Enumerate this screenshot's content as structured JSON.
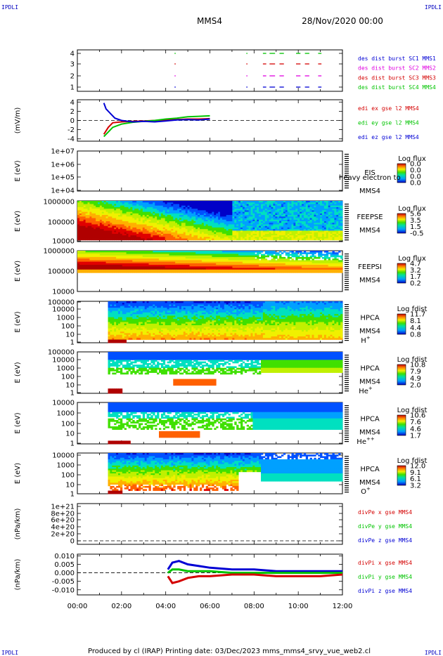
{
  "header": {
    "corner_left": "IPDLI",
    "corner_right": "IPDLI",
    "spacecraft": "MMS4",
    "datetime": "28/Nov/2020 00:00"
  },
  "footer": {
    "text": "Produced by cl (IRAP)   Printing date: 03/Dec/2023   mms_mms4_srvy_vue_web2.cl",
    "corner_left": "IPDLI",
    "corner_right": "IPDLI"
  },
  "time_axis": {
    "ticks": [
      "00:00",
      "02:00",
      "04:00",
      "06:00",
      "08:00",
      "10:00",
      "12:00"
    ]
  },
  "colors": {
    "red": "#d40000",
    "green": "#00c400",
    "blue": "#0000d4",
    "magenta": "#e000e0"
  },
  "chart_data": [
    {
      "id": "burst",
      "type": "scatter",
      "ylabel": "",
      "yticks": [
        "1",
        "2",
        "3",
        "4"
      ],
      "legend": [
        {
          "text": "des dist burst SC1 MMS1",
          "color": "#0000d4"
        },
        {
          "text": "des dist burst SC2 MMS2",
          "color": "#e000e0"
        },
        {
          "text": "des dist burst SC3 MMS3",
          "color": "#d40000"
        },
        {
          "text": "des dist burst SC4 MMS4",
          "color": "#00c400"
        }
      ],
      "intervals_hours": [
        [
          4.4,
          4.45
        ],
        [
          7.65,
          7.7
        ],
        [
          8.4,
          8.55
        ],
        [
          8.7,
          8.95
        ],
        [
          9.15,
          9.35
        ],
        [
          9.9,
          10.1
        ],
        [
          10.3,
          10.5
        ],
        [
          10.9,
          11.05
        ]
      ]
    },
    {
      "id": "efield",
      "type": "line",
      "ylabel": "(mV/m)",
      "yticks": [
        "-4",
        "-2",
        "0",
        "2",
        "4"
      ],
      "ylim": [
        -4.5,
        4.5
      ],
      "legend": [
        {
          "text": "edi ex gse l2 MMS4",
          "color": "#d40000"
        },
        {
          "text": "edi ey gse l2 MMS4",
          "color": "#00c400"
        },
        {
          "text": "edi ez gse l2 MMS4",
          "color": "#0000d4"
        }
      ],
      "series": [
        {
          "name": "edi ex gse l2 MMS4",
          "x": [
            1.2,
            1.4,
            1.6,
            2.0,
            2.5,
            3.0,
            3.5,
            4.0,
            4.5,
            5.0,
            5.5,
            6.0
          ],
          "y": [
            -3.0,
            -1.5,
            -0.5,
            -0.3,
            -0.2,
            -0.1,
            0.0,
            0.1,
            0.2,
            0.3,
            0.3,
            0.4
          ]
        },
        {
          "name": "edi ey gse l2 MMS4",
          "x": [
            1.2,
            1.4,
            1.6,
            2.0,
            2.5,
            3.0,
            3.5,
            4.0,
            4.5,
            5.0,
            5.5,
            6.0
          ],
          "y": [
            -3.5,
            -2.5,
            -1.5,
            -0.8,
            -0.4,
            -0.2,
            0.0,
            0.3,
            0.5,
            0.8,
            0.9,
            1.0
          ]
        },
        {
          "name": "edi ez gse l2 MMS4",
          "x": [
            1.2,
            1.3,
            1.5,
            1.7,
            2.0,
            2.5,
            3.0,
            3.5,
            4.0,
            4.5,
            5.0,
            5.5,
            6.0
          ],
          "y": [
            3.8,
            2.5,
            1.5,
            0.5,
            0.0,
            -0.3,
            -0.2,
            -0.3,
            -0.1,
            0.1,
            0.2,
            0.1,
            0.3
          ]
        }
      ]
    },
    {
      "id": "eis",
      "type": "heatmap",
      "ylabel": "E (eV)",
      "yticks": [
        "1e+04",
        "1e+05",
        "1e+06",
        "1e+07"
      ],
      "label_lines": [
        "EIS",
        "MMS4"
      ],
      "overlay_text": "heavy electron to",
      "colorbar_title": "Log flux",
      "colorbar_ticks": [
        "0.0",
        "0.0",
        "0.0",
        "0.0"
      ]
    },
    {
      "id": "feepse",
      "type": "heatmap",
      "ylabel": "E (eV)",
      "yticks": [
        "10000",
        "100000",
        "1000000"
      ],
      "label_lines": [
        "FEEPSE",
        "MMS4"
      ],
      "colorbar_title": "Log flux",
      "colorbar_ticks": [
        "5.6",
        "3.5",
        "1.5",
        "-0.5"
      ]
    },
    {
      "id": "feepsi",
      "type": "heatmap",
      "ylabel": "E (eV)",
      "yticks": [
        "10000",
        "100000",
        "1000000"
      ],
      "label_lines": [
        "FEEPSI",
        "MMS4"
      ],
      "colorbar_title": "Log flux",
      "colorbar_ticks": [
        "4.7",
        "3.2",
        "1.7",
        "0.2"
      ]
    },
    {
      "id": "hpca_h",
      "type": "heatmap",
      "ylabel": "E (eV)",
      "yticks": [
        "1",
        "10",
        "100",
        "1000",
        "10000",
        "100000"
      ],
      "label_lines": [
        "HPCA",
        "MMS4"
      ],
      "species": "H",
      "species_charge": "+",
      "colorbar_title": "Log fdist",
      "colorbar_ticks": [
        "11.7",
        "8.1",
        "4.4",
        "0.8"
      ]
    },
    {
      "id": "hpca_he1",
      "type": "heatmap",
      "ylabel": "E (eV)",
      "yticks": [
        "1",
        "10",
        "100",
        "1000",
        "10000",
        "100000"
      ],
      "label_lines": [
        "HPCA",
        "MMS4"
      ],
      "species": "He",
      "species_charge": "+",
      "colorbar_title": "Log fdist",
      "colorbar_ticks": [
        "10.8",
        "7.9",
        "4.9",
        "2.0"
      ]
    },
    {
      "id": "hpca_he2",
      "type": "heatmap",
      "ylabel": "E (eV)",
      "yticks": [
        "1",
        "10",
        "100",
        "1000",
        "10000"
      ],
      "label_lines": [
        "HPCA",
        "MMS4"
      ],
      "species": "He",
      "species_charge": "++",
      "colorbar_title": "Log fdist",
      "colorbar_ticks": [
        "10.6",
        "7.6",
        "4.6",
        "1.7"
      ]
    },
    {
      "id": "hpca_o",
      "type": "heatmap",
      "ylabel": "E (eV)",
      "yticks": [
        "1",
        "10",
        "100",
        "1000",
        "10000"
      ],
      "label_lines": [
        "HPCA",
        "MMS4"
      ],
      "species": "O",
      "species_charge": "+",
      "colorbar_title": "Log fdist",
      "colorbar_ticks": [
        "12.0",
        "9.1",
        "6.1",
        "3.2"
      ]
    },
    {
      "id": "divpe",
      "type": "line",
      "ylabel": "(nPa/km)",
      "yticks": [
        "0",
        "2e+20",
        "4e+20",
        "6e+20",
        "8e+20",
        "1e+21"
      ],
      "legend": [
        {
          "text": "divPe x gse MMS4",
          "color": "#d40000"
        },
        {
          "text": "divPe y gse MMS4",
          "color": "#00c400"
        },
        {
          "text": "divPe z gse MMS4",
          "color": "#0000d4"
        }
      ]
    },
    {
      "id": "divpi",
      "type": "line",
      "ylabel": "(nPa/km)",
      "yticks": [
        "-0.010",
        "-0.005",
        "0.000",
        "0.005",
        "0.010"
      ],
      "ylim": [
        -0.013,
        0.011
      ],
      "legend": [
        {
          "text": "divPi x gse MMS4",
          "color": "#d40000"
        },
        {
          "text": "divPi y gse MMS4",
          "color": "#00c400"
        },
        {
          "text": "divPi z gse MMS4",
          "color": "#0000d4"
        }
      ],
      "series": [
        {
          "name": "divPi z gse MMS4",
          "x": [
            4.1,
            4.3,
            4.6,
            5.0,
            5.5,
            6.0,
            7.0,
            8.0,
            9.0,
            10.0,
            11.0,
            12.0
          ],
          "y": [
            0.002,
            0.006,
            0.007,
            0.005,
            0.004,
            0.003,
            0.002,
            0.002,
            0.001,
            0.001,
            0.001,
            0.001
          ]
        },
        {
          "name": "divPi y gse MMS4",
          "x": [
            4.1,
            4.3,
            4.6,
            5.0,
            5.5,
            6.0,
            7.0,
            8.0,
            9.0,
            10.0,
            11.0,
            12.0
          ],
          "y": [
            0.0,
            0.002,
            0.002,
            0.001,
            0.001,
            0.001,
            0.0,
            0.0,
            0.0,
            0.0,
            0.0,
            0.0
          ]
        },
        {
          "name": "divPi x gse MMS4",
          "x": [
            4.1,
            4.3,
            4.6,
            5.0,
            5.5,
            6.0,
            7.0,
            8.0,
            9.0,
            10.0,
            11.0,
            12.0
          ],
          "y": [
            -0.002,
            -0.006,
            -0.005,
            -0.003,
            -0.002,
            -0.002,
            -0.001,
            -0.001,
            -0.002,
            -0.002,
            -0.002,
            -0.001
          ]
        }
      ]
    }
  ]
}
